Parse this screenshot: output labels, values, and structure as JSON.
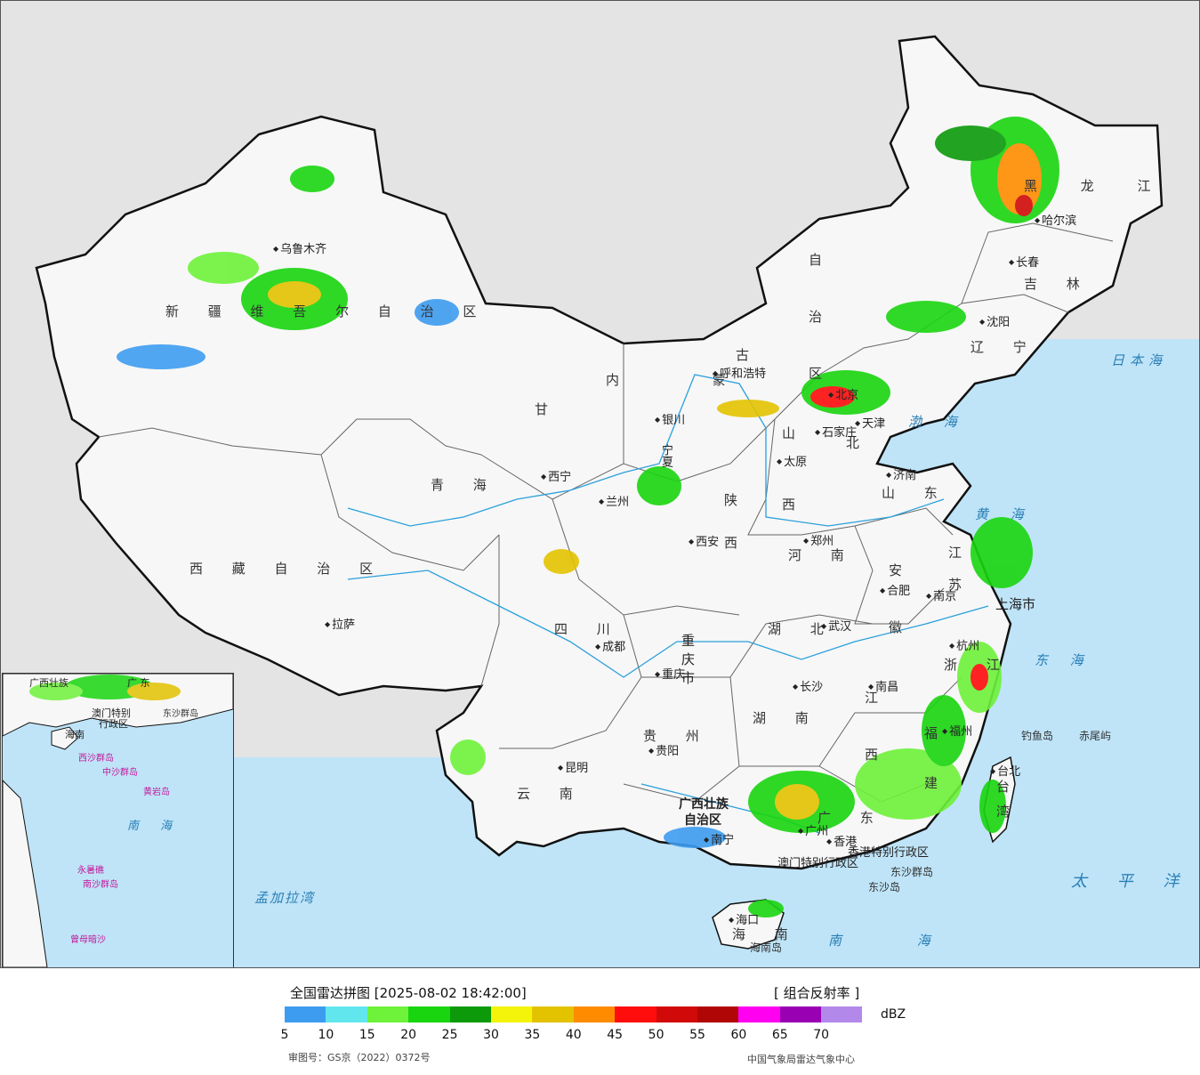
{
  "legend": {
    "title": "全国雷达拼图 [2025-08-02 18:42:00]",
    "product": "[ 组合反射率 ]",
    "unit": "dBZ",
    "ticks": [
      "5",
      "10",
      "15",
      "20",
      "25",
      "30",
      "35",
      "40",
      "45",
      "50",
      "55",
      "60",
      "65",
      "70"
    ],
    "colors": [
      "#3d9cf0",
      "#62e6ee",
      "#6ef23a",
      "#19d50f",
      "#0c9a0a",
      "#f4f40a",
      "#e3c200",
      "#ff8c00",
      "#ff0d0d",
      "#d20909",
      "#b10606",
      "#ff00f1",
      "#9a00b3",
      "#b289ea"
    ],
    "approval": "审图号：GS京（2022）0372号",
    "producer": "中国气象局雷达气象中心"
  },
  "colors": {
    "sea": "#bfe4f8",
    "land": "#f7f7f7",
    "outside": "#e4e4e4",
    "border": "#111111",
    "river": "#2aa0dc"
  },
  "regions": [
    "新疆维吾尔自治区",
    "西藏自治区",
    "青海",
    "甘肃",
    "四川",
    "云南",
    "贵州",
    "重庆市",
    "陕西",
    "山西",
    "河北",
    "河南",
    "湖北",
    "湖南",
    "广东",
    "广西壮族自治区",
    "江西",
    "福建",
    "浙江",
    "安徽",
    "江苏",
    "山东",
    "辽宁",
    "吉林",
    "黑龙江",
    "内蒙古自治区",
    "宁夏",
    "北京",
    "天津",
    "海南",
    "台湾"
  ],
  "labels": {
    "xinjiang": "新 疆 维 吾 尔 自 治 区",
    "xizang": "西 藏 自 治 区",
    "qinghai": "青 海",
    "gansu": "甘",
    "sichuan": "四 川",
    "yunnan": "云 南",
    "guizhou": "贵 州",
    "chongqing": "重庆市",
    "shaanxi": "陕 西",
    "shanxi": "山 西",
    "hebei": "北",
    "henan": "河 南",
    "hubei": "湖 北",
    "hunan": "湖 南",
    "guangdong": "广 东",
    "guangxi1": "广西壮族",
    "guangxi2": "自治区",
    "jiangxi": "江 西",
    "fujian": "福 建",
    "zhejiang": "浙 江",
    "anhui": "安 徽",
    "jiangsu": "江 苏",
    "shandong": "山 东",
    "liaoning": "辽 宁",
    "jilin": "吉 林",
    "heilongjiang": "黑 龙 江",
    "neimenggu1": "内 蒙",
    "neimenggu2": "古",
    "neimenggu3": "自 治 区",
    "hainan": "海 南",
    "taiwan": "台 湾",
    "shanghai": "上海市",
    "ningxia": "宁夏",
    "hk": "香港特别行政区",
    "macau": "澳门特别行政区"
  },
  "cities": [
    {
      "name": "乌鲁木齐",
      "id": "urumqi"
    },
    {
      "name": "拉萨",
      "id": "lhasa"
    },
    {
      "name": "西宁",
      "id": "xining"
    },
    {
      "name": "兰州",
      "id": "lanzhou"
    },
    {
      "name": "银川",
      "id": "yinchuan"
    },
    {
      "name": "呼和浩特",
      "id": "hohhot"
    },
    {
      "name": "北京",
      "id": "beijing"
    },
    {
      "name": "天津",
      "id": "tianjin"
    },
    {
      "name": "石家庄",
      "id": "shijiazhuang"
    },
    {
      "name": "太原",
      "id": "taiyuan"
    },
    {
      "name": "济南",
      "id": "jinan"
    },
    {
      "name": "郑州",
      "id": "zhengzhou"
    },
    {
      "name": "西安",
      "id": "xian"
    },
    {
      "name": "成都",
      "id": "chengdu"
    },
    {
      "name": "重庆",
      "id": "chongqing"
    },
    {
      "name": "武汉",
      "id": "wuhan"
    },
    {
      "name": "合肥",
      "id": "hefei"
    },
    {
      "name": "南京",
      "id": "nanjing"
    },
    {
      "name": "杭州",
      "id": "hangzhou"
    },
    {
      "name": "长沙",
      "id": "changsha"
    },
    {
      "name": "南昌",
      "id": "nanchang"
    },
    {
      "name": "福州",
      "id": "fuzhou"
    },
    {
      "name": "贵阳",
      "id": "guiyang"
    },
    {
      "name": "昆明",
      "id": "kunming"
    },
    {
      "name": "南宁",
      "id": "nanning"
    },
    {
      "name": "广州",
      "id": "guangzhou"
    },
    {
      "name": "海口",
      "id": "haikou"
    },
    {
      "name": "台北",
      "id": "taipei"
    },
    {
      "name": "沈阳",
      "id": "shenyang"
    },
    {
      "name": "长春",
      "id": "changchun"
    },
    {
      "name": "哈尔滨",
      "id": "harbin"
    },
    {
      "name": "香港",
      "id": "hongkong"
    }
  ],
  "seas": {
    "bohai": "渤 海",
    "huanghai": "黄 海",
    "donghai": "东 海",
    "nanhai": "南 海",
    "japan": "日本海",
    "pacific": "太 平 洋",
    "bengal": "孟加拉湾"
  },
  "islands": {
    "diaoyu": "钓鱼岛",
    "chiwei": "赤尾屿",
    "dongsha_qd": "东沙群岛",
    "dongsha": "东沙岛",
    "hainan_island": "海南岛"
  },
  "inset": {
    "nanhai": "南 海",
    "labels": [
      "广西壮族",
      "广 东",
      "澳门特别",
      "行政区",
      "东沙群岛",
      "海南",
      "西沙群岛",
      "中沙群岛",
      "黄岩岛",
      "永暑礁",
      "南沙群岛",
      "曾母暗沙"
    ]
  }
}
